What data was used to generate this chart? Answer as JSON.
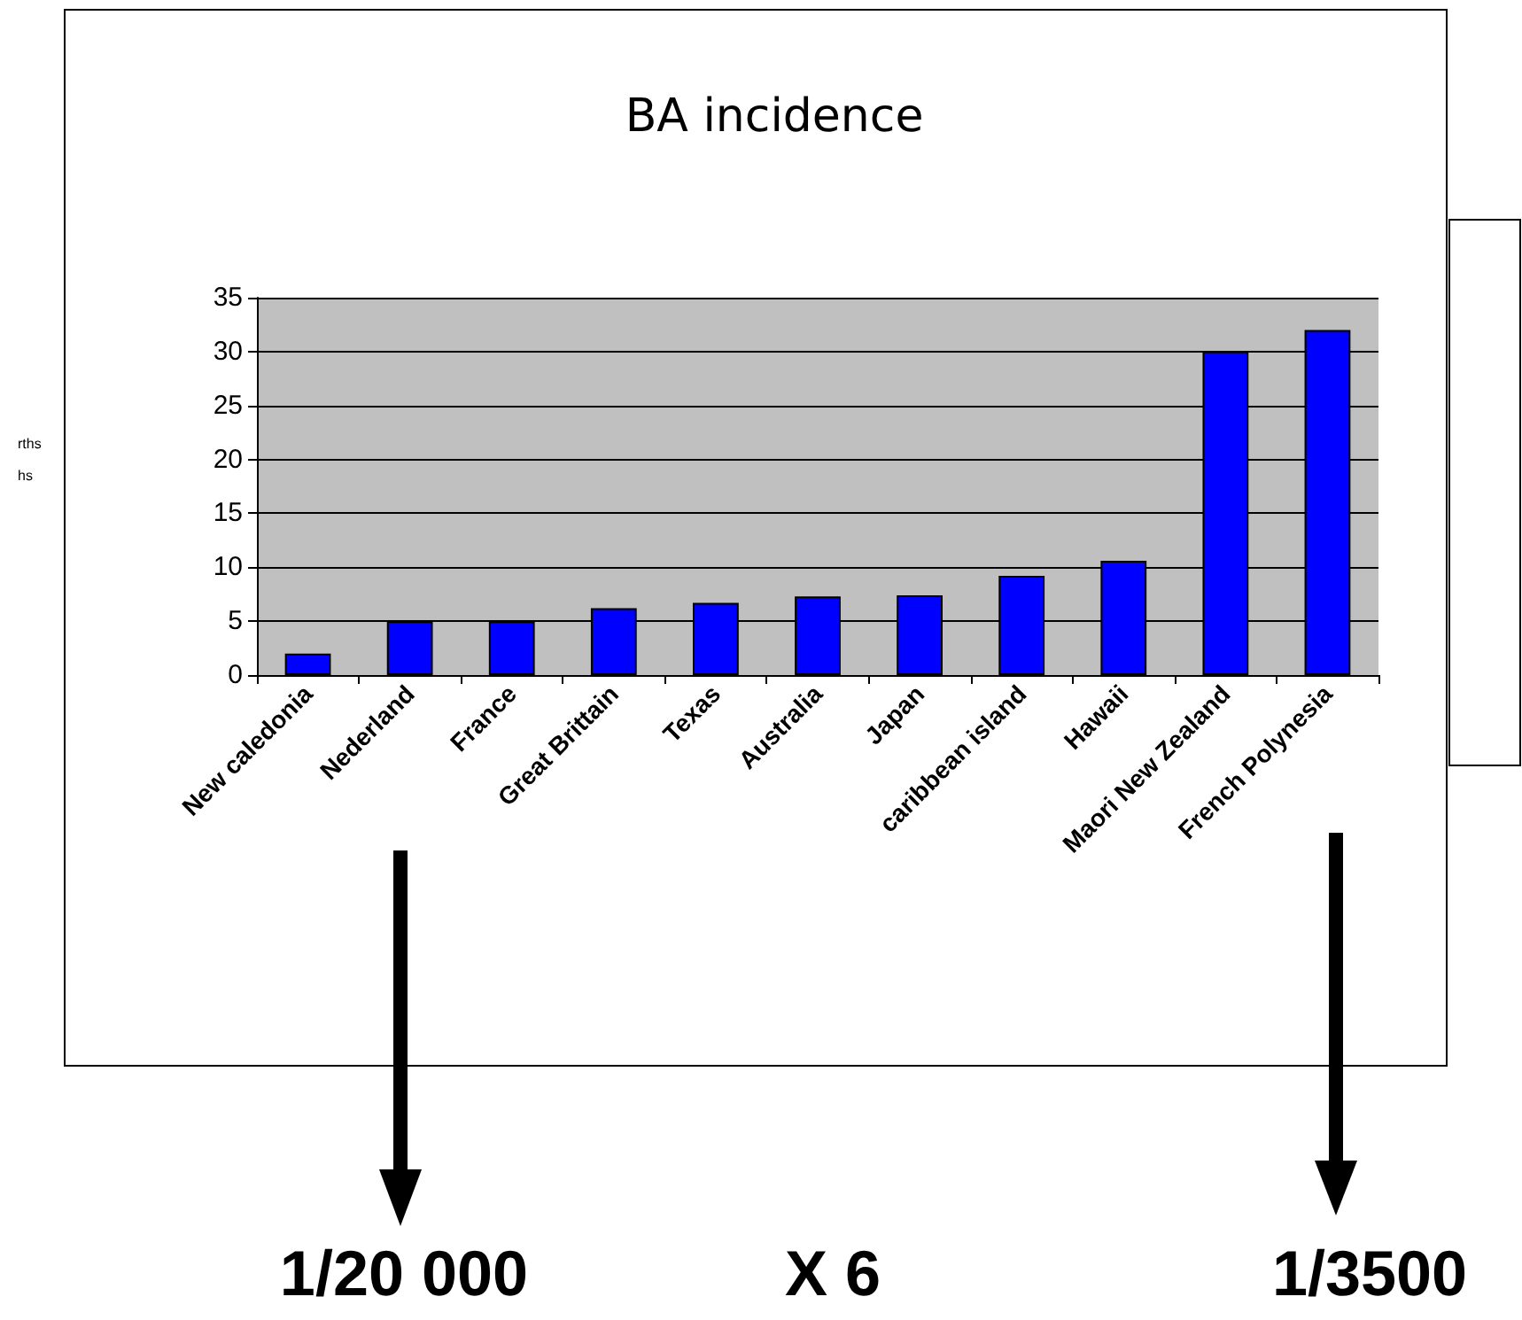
{
  "chart_data": {
    "type": "bar",
    "title": "BA incidence",
    "categories": [
      "New caledonia",
      "Nederland",
      "France",
      "Great Brittain",
      "Texas",
      "Australia",
      "Japan",
      "caribbean island",
      "Hawaii",
      "Maori New Zealand",
      "French Polynesia"
    ],
    "values": [
      2,
      5,
      5,
      6.2,
      6.7,
      7.3,
      7.4,
      9.2,
      10.6,
      30,
      32
    ],
    "color": "#0000ff",
    "ylim": [
      0,
      35
    ],
    "yticks": [
      0,
      5,
      10,
      15,
      20,
      25,
      30,
      35
    ],
    "grid": "y",
    "annotations": [
      "rths",
      "hs",
      "1/20 000",
      "X 6",
      "1/3500"
    ]
  }
}
